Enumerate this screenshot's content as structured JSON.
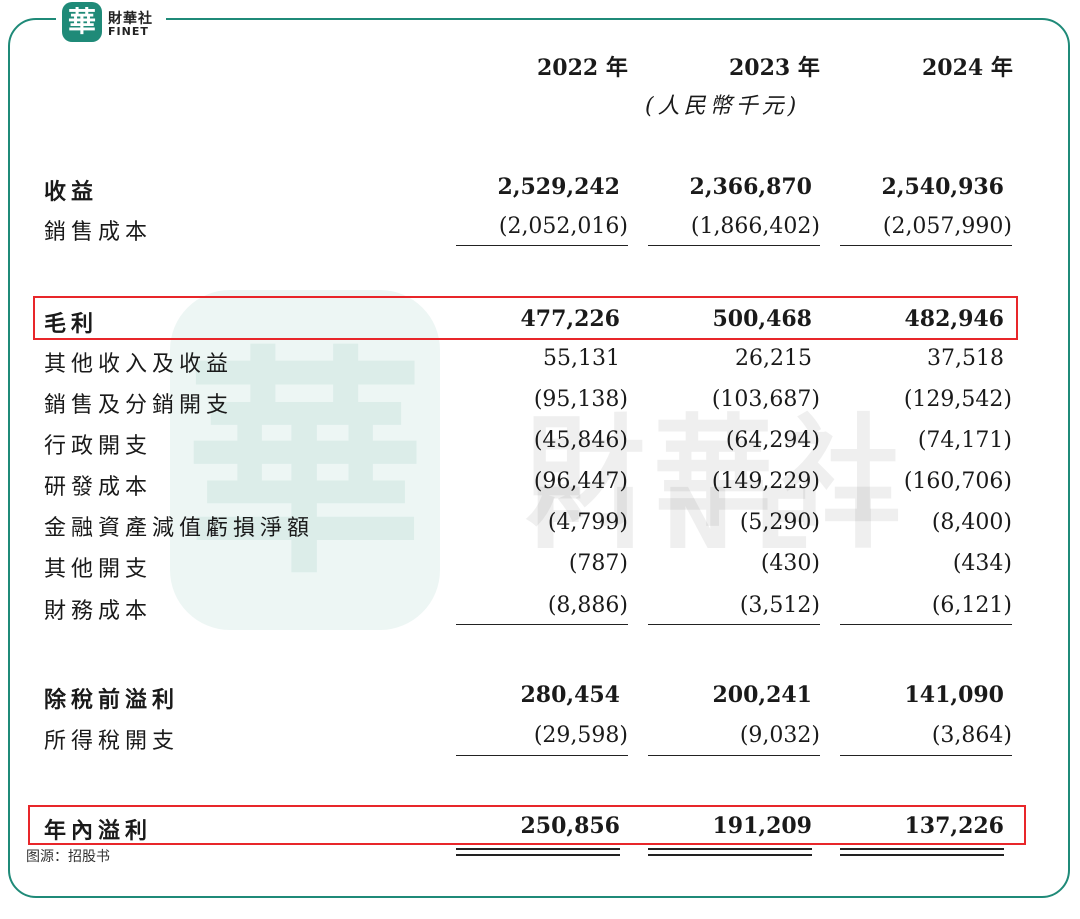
{
  "brand": {
    "logo_char": "華",
    "name_cn": "財華社",
    "name_en": "FINET",
    "watermark_cn": "財華社",
    "watermark_en": "FINET",
    "accent_color": "#1f8a78",
    "highlight_color": "#e8262a"
  },
  "table": {
    "years": [
      "2022 年",
      "2023 年",
      "2024 年"
    ],
    "unit": "(人民幣千元)",
    "rows": [
      {
        "label": "收益",
        "values": [
          "2,529,242",
          "2,366,870",
          "2,540,936"
        ],
        "bold": true
      },
      {
        "label": "銷售成本",
        "values": [
          "(2,052,016)",
          "(1,866,402)",
          "(2,057,990)"
        ],
        "bold": false
      },
      {
        "label": "毛利",
        "values": [
          "477,226",
          "500,468",
          "482,946"
        ],
        "bold": true,
        "highlighted": true
      },
      {
        "label": "其他收入及收益",
        "values": [
          "55,131",
          "26,215",
          "37,518"
        ],
        "bold": false
      },
      {
        "label": "銷售及分銷開支",
        "values": [
          "(95,138)",
          "(103,687)",
          "(129,542)"
        ],
        "bold": false
      },
      {
        "label": "行政開支",
        "values": [
          "(45,846)",
          "(64,294)",
          "(74,171)"
        ],
        "bold": false
      },
      {
        "label": "研發成本",
        "values": [
          "(96,447)",
          "(149,229)",
          "(160,706)"
        ],
        "bold": false
      },
      {
        "label": "金融資產減值虧損淨額",
        "values": [
          "(4,799)",
          "(5,290)",
          "(8,400)"
        ],
        "bold": false
      },
      {
        "label": "其他開支",
        "values": [
          "(787)",
          "(430)",
          "(434)"
        ],
        "bold": false
      },
      {
        "label": "財務成本",
        "values": [
          "(8,886)",
          "(3,512)",
          "(6,121)"
        ],
        "bold": false
      },
      {
        "label": "除稅前溢利",
        "values": [
          "280,454",
          "200,241",
          "141,090"
        ],
        "bold": true
      },
      {
        "label": "所得稅開支",
        "values": [
          "(29,598)",
          "(9,032)",
          "(3,864)"
        ],
        "bold": false
      },
      {
        "label": "年內溢利",
        "values": [
          "250,856",
          "191,209",
          "137,226"
        ],
        "bold": true,
        "highlighted": true
      }
    ]
  },
  "source": "图源：招股书"
}
